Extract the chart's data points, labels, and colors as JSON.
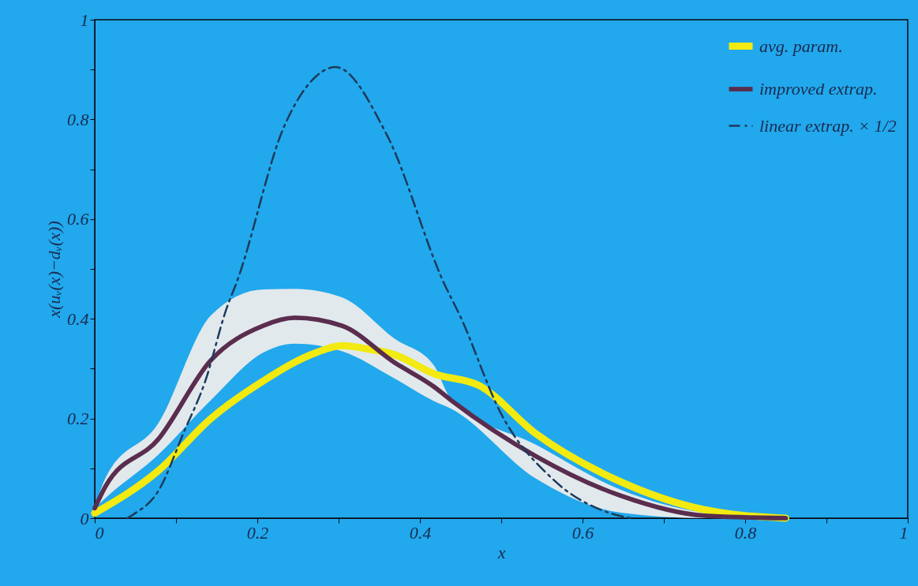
{
  "chart_data": {
    "type": "line",
    "xlabel": "x",
    "ylabel": "x(uᵥ(x)−dᵥ(x))",
    "xlim": [
      0,
      1
    ],
    "xticks": [
      0,
      {
        "value": 0.1,
        "label": null
      },
      0.2,
      {
        "value": 0.3,
        "label": null
      },
      0.4,
      {
        "value": 0.5,
        "label": null
      },
      0.6,
      {
        "value": 0.7,
        "label": null
      },
      0.8,
      {
        "value": 0.9,
        "label": null
      },
      1
    ],
    "ylim": [
      0,
      1
    ],
    "yticks": [
      0,
      {
        "value": 0.1,
        "label": null
      },
      0.2,
      {
        "value": 0.3,
        "label": null
      },
      0.4,
      {
        "value": 0.5,
        "label": null
      },
      0.6,
      {
        "value": 0.7,
        "label": null
      },
      0.8,
      {
        "value": 0.9,
        "label": null
      },
      1
    ],
    "grid": false,
    "legend": "top right",
    "marker": "none",
    "series": [
      {
        "name": "avg. param.",
        "color": "#f2ea10",
        "line_style": "solid",
        "x": [
          0,
          0.078,
          0.143,
          0.207,
          0.272,
          0.304,
          0.337,
          0.369,
          0.417,
          0.473,
          0.543,
          0.647,
          0.75,
          0.85
        ],
        "values": [
          0.01,
          0.095,
          0.2,
          0.275,
          0.332,
          0.346,
          0.339,
          0.328,
          0.29,
          0.266,
          0.169,
          0.073,
          0.017,
          0
        ]
      },
      {
        "name": "improved extrap.",
        "color": "#5a2d4e",
        "line_style": "solid",
        "x": [
          0,
          0.013,
          0.078,
          0.143,
          0.207,
          0.246,
          0.304,
          0.369,
          0.417,
          0.438,
          0.543,
          0.647,
          0.75,
          0.85
        ],
        "values": [
          0.02,
          0.063,
          0.158,
          0.317,
          0.386,
          0.402,
          0.386,
          0.312,
          0.264,
          0.237,
          0.124,
          0.045,
          0.005,
          0
        ],
        "lower": [
          0.02,
          0.04,
          0.127,
          0.237,
          0.332,
          0.35,
          0.335,
          0.28,
          0.235,
          0.22,
          0.079,
          0.011,
          0,
          0
        ],
        "upper": [
          0.02,
          0.08,
          0.19,
          0.407,
          0.459,
          0.46,
          0.443,
          0.36,
          0.307,
          0.24,
          0.147,
          0.057,
          0.011,
          0
        ]
      },
      {
        "name": "linear extrap. × 1/2",
        "color": "#1c3a5c",
        "line_style": "dashed",
        "x": [
          0.04,
          0.046,
          0.078,
          0.11,
          0.136,
          0.162,
          0.175,
          0.233,
          0.272,
          0.296,
          0.359,
          0.43,
          0.449,
          0.5,
          0.563,
          0.632,
          0.66
        ],
        "values": [
          0,
          0.006,
          0.054,
          0.174,
          0.275,
          0.42,
          0.475,
          0.786,
          0.886,
          0.905,
          0.77,
          0.47,
          0.407,
          0.209,
          0.079,
          0.011,
          0
        ]
      }
    ]
  }
}
